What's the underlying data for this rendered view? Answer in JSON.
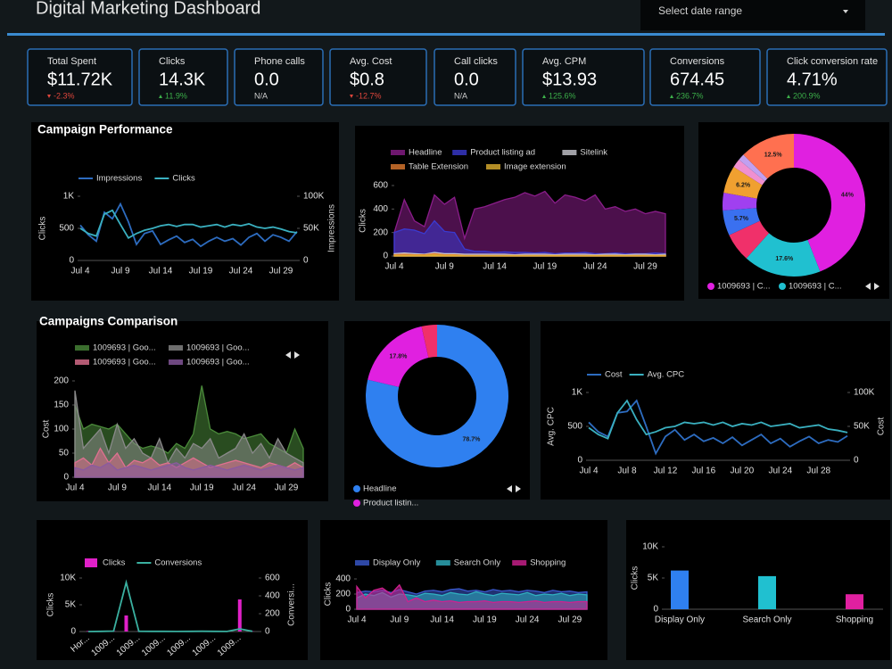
{
  "header": {
    "title": "Digital Marketing Dashboard",
    "date_picker": "Select date range"
  },
  "kpis": [
    {
      "label": "Total Spent",
      "value": "$11.72K",
      "change": "-2.3%",
      "trend": "down",
      "change_color": "#e0463c"
    },
    {
      "label": "Clicks",
      "value": "14.3K",
      "change": "11.9%",
      "trend": "up",
      "change_color": "#3cb04a"
    },
    {
      "label": "Phone calls",
      "value": "0.0",
      "change": "N/A",
      "change_color": "#cfcfcf"
    },
    {
      "label": "Avg. Cost",
      "value": "$0.8",
      "change": "-12.7%",
      "trend": "down",
      "change_color": "#e0463c"
    },
    {
      "label": "Call clicks",
      "value": "0.0",
      "change": "N/A",
      "change_color": "#cfcfcf"
    },
    {
      "label": "Avg. CPM",
      "value": "$13.93",
      "change": "125.6%",
      "trend": "up",
      "change_color": "#3cb04a"
    },
    {
      "label": "Conversions",
      "value": "674.45",
      "change": "236.7%",
      "trend": "up",
      "change_color": "#3cb04a"
    },
    {
      "label": "Click conversion rate",
      "value": "4.71%",
      "change": "200.9%",
      "trend": "up",
      "change_color": "#3cb04a"
    }
  ],
  "chart_data": [
    {
      "type": "line",
      "title": "Campaign Performance",
      "ylabel": "Clicks",
      "y2label": "Impressions",
      "categories": [
        "Jul 4",
        null,
        null,
        null,
        null,
        "Jul 9",
        null,
        null,
        null,
        null,
        "Jul 14",
        null,
        null,
        null,
        null,
        "Jul 19",
        null,
        null,
        null,
        null,
        "Jul 24",
        null,
        null,
        null,
        null,
        "Jul 29",
        null,
        null
      ],
      "ylim": [
        0,
        1000
      ],
      "yticks": [
        0,
        500,
        {
          "value": 1000,
          "label": "1K"
        }
      ],
      "y2lim": [
        0,
        100000
      ],
      "y2ticks": [
        0,
        {
          "value": 50000,
          "label": "50K"
        },
        {
          "value": 100000,
          "label": "100K"
        }
      ],
      "series": [
        {
          "name": "Impressions",
          "color": "#2d6cc0",
          "axis": "y2",
          "values": [
            55000,
            40000,
            30000,
            75000,
            65000,
            88000,
            60000,
            25000,
            42000,
            46000,
            25000,
            32000,
            38000,
            28000,
            33000,
            22000,
            30000,
            36000,
            30000,
            34000,
            24000,
            36000,
            42000,
            30000,
            40000,
            36000,
            30000,
            45000
          ]
        },
        {
          "name": "Clicks",
          "color": "#3ab0c0",
          "values": [
            500,
            420,
            380,
            720,
            780,
            560,
            350,
            420,
            470,
            500,
            540,
            560,
            530,
            560,
            560,
            520,
            540,
            560,
            520,
            560,
            540,
            570,
            520,
            500,
            520,
            490,
            450,
            430
          ]
        }
      ]
    },
    {
      "type": "area",
      "ylabel": "Clicks",
      "categories": [
        "Jul 4",
        null,
        null,
        null,
        null,
        "Jul 9",
        null,
        null,
        null,
        null,
        "Jul 14",
        null,
        null,
        null,
        null,
        "Jul 19",
        null,
        null,
        null,
        null,
        "Jul 24",
        null,
        null,
        null,
        null,
        "Jul 29",
        null,
        null
      ],
      "ylim": [
        0,
        600
      ],
      "yticks": [
        0,
        200,
        400,
        600
      ],
      "series": [
        {
          "name": "Headline",
          "color": "#8a1d8a",
          "values": [
            200,
            480,
            300,
            250,
            520,
            440,
            500,
            150,
            400,
            420,
            450,
            480,
            500,
            540,
            510,
            550,
            450,
            520,
            500,
            470,
            520,
            400,
            420,
            380,
            400,
            360,
            380,
            360
          ]
        },
        {
          "name": "Product listing ad",
          "color": "#3a3ad0",
          "values": [
            200,
            230,
            220,
            190,
            300,
            210,
            200,
            60,
            40,
            40,
            30,
            35,
            30,
            30,
            25,
            30,
            20,
            25,
            25,
            30,
            20,
            20,
            25,
            20,
            20,
            20,
            25,
            20
          ]
        },
        {
          "name": "Sitelink",
          "color": "#c8c8d0",
          "values": [
            20,
            25,
            20,
            15,
            30,
            20,
            20,
            15,
            15,
            15,
            15,
            15,
            10,
            15,
            15,
            15,
            10,
            15,
            15,
            15,
            10,
            15,
            15,
            10,
            15,
            15,
            10,
            15
          ]
        },
        {
          "name": "Table Extension",
          "color": "#e07b30",
          "values": [
            10,
            15,
            10,
            10,
            20,
            10,
            10,
            5,
            5,
            5,
            5,
            5,
            5,
            5,
            5,
            5,
            5,
            5,
            5,
            5,
            5,
            5,
            5,
            5,
            5,
            5,
            5,
            5
          ]
        },
        {
          "name": "Image extension",
          "color": "#e0b030",
          "values": [
            5,
            5,
            5,
            5,
            10,
            5,
            5,
            2,
            2,
            2,
            2,
            2,
            2,
            2,
            2,
            2,
            2,
            2,
            2,
            2,
            2,
            2,
            2,
            2,
            2,
            2,
            2,
            2
          ]
        }
      ]
    },
    {
      "type": "pie",
      "categories": [
        "1009693 | C...",
        "1009693 | C...",
        null,
        null,
        null,
        null,
        null,
        null,
        null
      ],
      "values": [
        44,
        17.6,
        6.5,
        5.7,
        4,
        6.2,
        2,
        1.5,
        12.5
      ],
      "value_labels": [
        "44%",
        "17.6%",
        null,
        "5.7%",
        null,
        "6.2%",
        null,
        null,
        "12.5%"
      ],
      "colors": [
        "#e020e0",
        "#20c0d0",
        "#f0306a",
        "#3a70f0",
        "#a040f0",
        "#f0a030",
        "#f090d0",
        "#c0a0f0",
        "#ff7050"
      ]
    },
    {
      "type": "area",
      "title": "Campaigns Comparison",
      "ylabel": "Cost",
      "categories": [
        "Jul 4",
        null,
        null,
        null,
        null,
        "Jul 9",
        null,
        null,
        null,
        null,
        "Jul 14",
        null,
        null,
        null,
        null,
        "Jul 19",
        null,
        null,
        null,
        null,
        "Jul 24",
        null,
        null,
        null,
        null,
        "Jul 29",
        null,
        null
      ],
      "ylim": [
        0,
        200
      ],
      "yticks": [
        0,
        50,
        100,
        150,
        200
      ],
      "series": [
        {
          "name": "1009693 | Goo...",
          "color": "#4a8a3a",
          "values": [
            150,
            100,
            110,
            105,
            100,
            110,
            90,
            70,
            60,
            65,
            60,
            50,
            70,
            60,
            90,
            190,
            100,
            90,
            95,
            90,
            80,
            85,
            90,
            70,
            60,
            50,
            100,
            60
          ]
        },
        {
          "name": "1009693 | Goo...",
          "color": "#8a8a8a",
          "values": [
            180,
            60,
            80,
            100,
            50,
            110,
            60,
            80,
            50,
            40,
            80,
            30,
            60,
            40,
            70,
            60,
            80,
            40,
            50,
            60,
            90,
            50,
            70,
            40,
            80,
            50,
            40,
            30
          ]
        },
        {
          "name": "1009693 | Goo...",
          "color": "#e07090",
          "values": [
            30,
            40,
            25,
            60,
            30,
            50,
            20,
            35,
            30,
            40,
            25,
            30,
            20,
            30,
            40,
            30,
            20,
            25,
            30,
            35,
            30,
            25,
            20,
            30,
            25,
            20,
            30,
            20
          ]
        },
        {
          "name": "1009693 | Goo...",
          "color": "#8a5aa0",
          "values": [
            20,
            15,
            25,
            20,
            30,
            15,
            20,
            25,
            20,
            15,
            20,
            25,
            30,
            20,
            15,
            20,
            25,
            20,
            15,
            20,
            25,
            20,
            15,
            20,
            25,
            20,
            15,
            20
          ]
        }
      ]
    },
    {
      "type": "pie",
      "categories": [
        "Headline",
        "Product listin...",
        null
      ],
      "values": [
        78.7,
        17.8,
        3.5
      ],
      "value_labels": [
        "78.7%",
        "17.8%",
        null
      ],
      "colors": [
        "#2f80f0",
        "#e020e0",
        "#f0306a"
      ]
    },
    {
      "type": "line",
      "ylabel": "Avg. CPC",
      "y2label": "Cost",
      "categories": [
        "Jul 4",
        null,
        null,
        null,
        "Jul 8",
        null,
        null,
        null,
        "Jul 12",
        null,
        null,
        null,
        "Jul 16",
        null,
        null,
        null,
        "Jul 20",
        null,
        null,
        null,
        "Jul 24",
        null,
        null,
        null,
        "Jul 28",
        null,
        null,
        null
      ],
      "ylim": [
        0,
        1000
      ],
      "yticks": [
        0,
        500,
        {
          "value": 1000,
          "label": "1K"
        }
      ],
      "y2lim": [
        0,
        100000
      ],
      "y2ticks": [
        0,
        {
          "value": 50000,
          "label": "50K"
        },
        {
          "value": 100000,
          "label": "100K"
        }
      ],
      "series": [
        {
          "name": "Cost",
          "color": "#2d6cc0",
          "axis": "y2",
          "values": [
            56000,
            42000,
            35000,
            70000,
            72000,
            88000,
            50000,
            10000,
            35000,
            45000,
            30000,
            38000,
            28000,
            33000,
            25000,
            34000,
            22000,
            30000,
            38000,
            25000,
            32000,
            20000,
            28000,
            35000,
            25000,
            30000,
            27000,
            36000
          ]
        },
        {
          "name": "Avg. CPC",
          "color": "#3ab0c0",
          "values": [
            480,
            380,
            320,
            700,
            880,
            600,
            380,
            420,
            480,
            500,
            560,
            540,
            560,
            520,
            560,
            500,
            540,
            520,
            560,
            500,
            520,
            540,
            480,
            500,
            520,
            460,
            440,
            410
          ]
        }
      ]
    },
    {
      "type": "combo",
      "ylabel": "Clicks",
      "y2label": "Conversi...",
      "categories": [
        "Hor...",
        null,
        "1009...",
        null,
        "1009...",
        null,
        "1009...",
        null,
        "1009...",
        null,
        "1009...",
        null,
        "1009...",
        null
      ],
      "ylim": [
        0,
        10000
      ],
      "yticks": [
        0,
        {
          "value": 5000,
          "label": "5K"
        },
        {
          "value": 10000,
          "label": "10K"
        }
      ],
      "y2lim": [
        0,
        600
      ],
      "y2ticks": [
        0,
        200,
        400,
        600
      ],
      "series": [
        {
          "name": "Clicks",
          "color": "#e020c8",
          "type": "bar",
          "values": [
            100,
            50,
            80,
            3000,
            60,
            40,
            50,
            30,
            40,
            50,
            60,
            40,
            6000,
            50
          ]
        },
        {
          "name": "Conversions",
          "color": "#3ab0a0",
          "type": "line",
          "axis": "y2",
          "values": [
            0,
            2,
            5,
            550,
            3,
            2,
            2,
            1,
            2,
            3,
            2,
            1,
            30,
            2
          ]
        }
      ]
    },
    {
      "type": "area",
      "ylabel": "Clicks",
      "categories": [
        "Jul 4",
        null,
        null,
        null,
        null,
        "Jul 9",
        null,
        null,
        null,
        null,
        "Jul 14",
        null,
        null,
        null,
        null,
        "Jul 19",
        null,
        null,
        null,
        null,
        "Jul 24",
        null,
        null,
        null,
        null,
        "Jul 29",
        null,
        null
      ],
      "ylim": [
        0,
        400
      ],
      "yticks": [
        0,
        200,
        400
      ],
      "series": [
        {
          "name": "Display Only",
          "color": "#3a5ad0",
          "values": [
            220,
            240,
            230,
            250,
            220,
            260,
            230,
            200,
            240,
            250,
            230,
            260,
            270,
            240,
            250,
            230,
            260,
            240,
            250,
            230,
            250,
            240,
            220,
            250,
            230,
            240,
            220,
            230
          ]
        },
        {
          "name": "Search Only",
          "color": "#30b0c0",
          "values": [
            150,
            200,
            180,
            220,
            160,
            200,
            190,
            170,
            210,
            200,
            180,
            220,
            200,
            190,
            230,
            200,
            180,
            210,
            200,
            190,
            220,
            180,
            200,
            190,
            210,
            180,
            200,
            190
          ]
        },
        {
          "name": "Shopping",
          "color": "#d02090",
          "values": [
            300,
            150,
            250,
            280,
            200,
            320,
            100,
            150,
            100,
            120,
            100,
            110,
            90,
            100,
            100,
            110,
            90,
            100,
            100,
            90,
            100,
            110,
            90,
            100,
            100,
            90,
            100,
            100
          ]
        }
      ]
    },
    {
      "type": "bar",
      "ylabel": "Clicks",
      "categories": [
        "Display Only",
        "Search Only",
        "Shopping"
      ],
      "values": [
        6200,
        5300,
        2400
      ],
      "colors": [
        "#2f80f0",
        "#20c0d0",
        "#e020a0"
      ],
      "ylim": [
        0,
        10000
      ],
      "yticks": [
        0,
        {
          "value": 5000,
          "label": "5K"
        },
        {
          "value": 10000,
          "label": "10K"
        }
      ]
    }
  ]
}
